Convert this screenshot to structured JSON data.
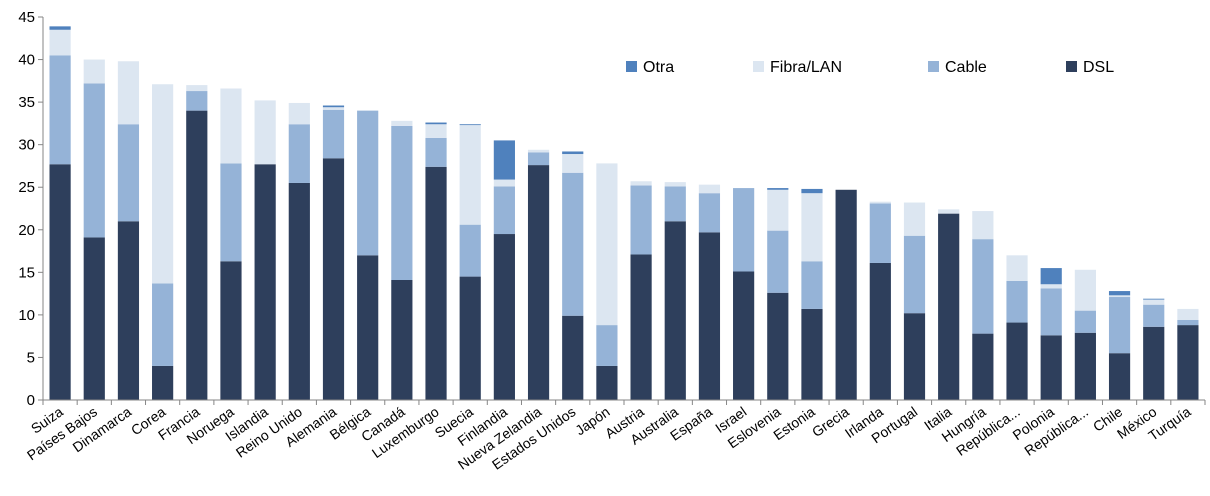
{
  "chart_data": {
    "type": "bar",
    "stacked": true,
    "title": "",
    "xlabel": "",
    "ylabel": "",
    "ylim": [
      0,
      45
    ],
    "yticks": [
      0,
      5,
      10,
      15,
      20,
      25,
      30,
      35,
      40,
      45
    ],
    "grid": false,
    "legend_position": "top-right",
    "categories": [
      "Suiza",
      "Países Bajos",
      "Dinamarca",
      "Corea",
      "Francia",
      "Noruega",
      "Islandia",
      "Reino Unido",
      "Alemania",
      "Bélgica",
      "Canadá",
      "Luxemburgo",
      "Suecia",
      "Finlandia",
      "Nueva Zelandia",
      "Estados Unidos",
      "Japón",
      "Austria",
      "Australia",
      "España",
      "Israel",
      "Eslovenia",
      "Estonia",
      "Grecia",
      "Irlanda",
      "Portugal",
      "Italia",
      "Hungría",
      "República...",
      "Polonia",
      "República...",
      "Chile",
      "México",
      "Turquía"
    ],
    "series": [
      {
        "name": "DSL",
        "color": "#2e3f5c",
        "values": [
          27.7,
          19.1,
          21.0,
          4.0,
          34.0,
          16.3,
          27.7,
          25.5,
          28.4,
          17.0,
          14.1,
          27.4,
          14.5,
          19.5,
          27.6,
          9.9,
          4.0,
          17.1,
          21.0,
          19.7,
          15.1,
          12.6,
          10.7,
          24.7,
          16.1,
          10.2,
          21.9,
          7.8,
          9.1,
          7.6,
          7.9,
          5.5,
          8.6,
          8.8
        ]
      },
      {
        "name": "Cable",
        "color": "#95b3d7",
        "values": [
          12.8,
          18.1,
          11.4,
          9.7,
          2.3,
          11.5,
          0,
          6.9,
          5.7,
          17.0,
          18.1,
          3.4,
          6.1,
          5.6,
          1.5,
          16.8,
          4.8,
          8.1,
          4.1,
          4.6,
          9.8,
          7.3,
          5.6,
          0,
          7.0,
          9.1,
          0,
          11.1,
          4.9,
          5.5,
          2.6,
          6.6,
          2.6,
          0.6
        ]
      },
      {
        "name": "Fibra/LAN",
        "color": "#dce6f1",
        "values": [
          3.0,
          2.8,
          7.4,
          23.4,
          0.7,
          8.8,
          7.5,
          2.5,
          0.3,
          0,
          0.6,
          1.6,
          11.7,
          0.8,
          0.3,
          2.2,
          19.0,
          0.5,
          0.5,
          1.0,
          0,
          4.8,
          8.0,
          0,
          0.2,
          3.9,
          0.5,
          3.3,
          3.0,
          0.5,
          4.8,
          0.2,
          0.6,
          1.3
        ]
      },
      {
        "name": "Otra",
        "color": "#4f81bd",
        "values": [
          0.4,
          0,
          0,
          0,
          0,
          0,
          0,
          0,
          0.2,
          0,
          0,
          0.2,
          0.1,
          4.6,
          0,
          0.3,
          0,
          0,
          0,
          0,
          0,
          0.2,
          0.5,
          0,
          0,
          0,
          0,
          0,
          0,
          1.9,
          0,
          0.5,
          0.1,
          0
        ]
      }
    ],
    "legend_order": [
      "Otra",
      "Fibra/LAN",
      "Cable",
      "DSL"
    ]
  }
}
